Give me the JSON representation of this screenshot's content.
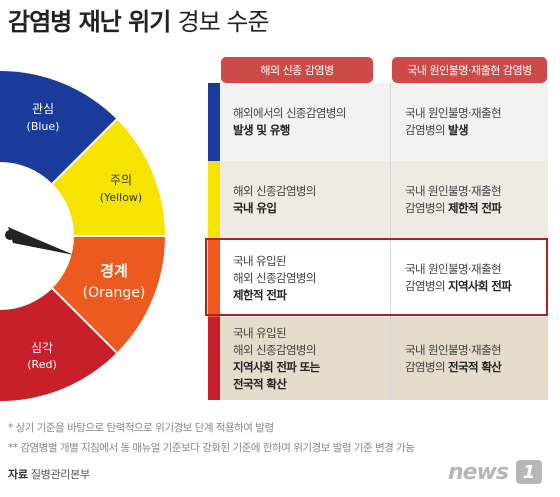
{
  "title": {
    "bold": "감염병 재난 위기",
    "light": "경보 수준"
  },
  "levels": [
    {
      "name": "관심",
      "en": "(Blue)",
      "color": "#1a3a9c"
    },
    {
      "name": "주의",
      "en": "(Yellow)",
      "color": "#f5e300"
    },
    {
      "name": "경계",
      "en": "(Orange)",
      "color": "#ec5a1f"
    },
    {
      "name": "심각",
      "en": "(Red)",
      "color": "#c8202b"
    }
  ],
  "columns": [
    "해외 신종 감염병",
    "국내 원인불명·재출현 감염병"
  ],
  "rows": [
    {
      "c1": [
        {
          "plain": "해외에서의 신종감염병의"
        },
        {
          "bold": "발생 및 유행"
        }
      ],
      "c2": [
        {
          "plain": "국내 원인불명·재출현"
        },
        {
          "plain": "감염병의 ",
          "bold": "발생"
        }
      ]
    },
    {
      "c1": [
        {
          "plain": "해외 신종감염병의"
        },
        {
          "bold": "국내 유입"
        }
      ],
      "c2": [
        {
          "plain": "국내 원인불명·재출현"
        },
        {
          "plain": "감염병의 ",
          "bold": "제한적 전파"
        }
      ]
    },
    {
      "c1": [
        {
          "plain": "국내 유입된"
        },
        {
          "plain": "해외 신종감염병의"
        },
        {
          "bold": "제한적 전파"
        }
      ],
      "c2": [
        {
          "plain": "국내 원인불명·재출현"
        },
        {
          "plain": "감염병의 ",
          "bold": "지역사회 전파"
        }
      ]
    },
    {
      "c1": [
        {
          "plain": "국내 유입된"
        },
        {
          "plain": "해외 신종감염병의"
        },
        {
          "bold": "지역사회 전파 또는"
        },
        {
          "bold": "전국적 확산"
        }
      ],
      "c2": [
        {
          "plain": "국내 원인불명·재출현"
        },
        {
          "plain": "감염병의 ",
          "bold": "전국적 확산"
        }
      ]
    }
  ],
  "notes": [
    "* 상기 기준을 바탕으로 탄력적으로 위기경보 단계 적용하여 발령",
    "** 감염병별 개별 지침에서 동 매뉴얼 기준보다 강화된 기준에 한하여 위기경보 발령 기준 변경 가능"
  ],
  "source": {
    "label": "자료",
    "value": "질병관리본부"
  },
  "logo": {
    "word": "news",
    "badge": "1"
  }
}
